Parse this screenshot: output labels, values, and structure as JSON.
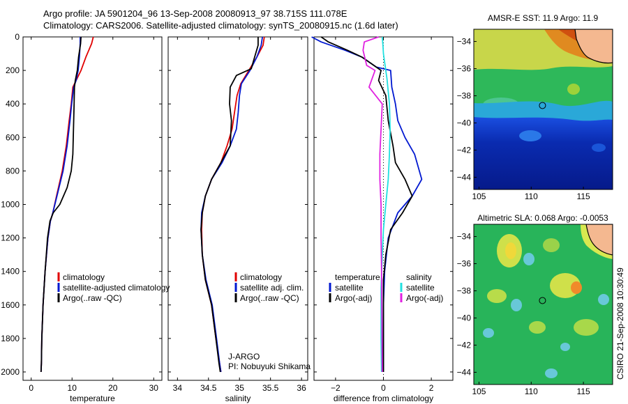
{
  "header": {
    "line1": "Argo profile: JA 5901204_96 13-Sep-2008 20080913_97 38.715S 111.078E",
    "line2": "Climatology: CARS2006. Satellite-adjusted climatology: synTS_20080915.nc (1.6d later)"
  },
  "colors": {
    "red": "#e00000",
    "blue": "#0018d0",
    "black": "#000000",
    "cyan": "#20e0e0",
    "magenta": "#e020e0"
  },
  "chart_data": [
    {
      "type": "line",
      "xlabel": "temperature",
      "ylabel": "",
      "xlim": [
        -2,
        32
      ],
      "ylim": [
        2050,
        0
      ],
      "xticks": [
        0,
        10,
        20,
        30
      ],
      "yticks": [
        0,
        200,
        400,
        600,
        800,
        1000,
        1200,
        1400,
        1600,
        1800,
        2000
      ],
      "legend": [
        "climatology",
        "satellite-adjusted climatology",
        "Argo(..raw -QC)"
      ],
      "series": [
        {
          "name": "climatology",
          "color": "red",
          "x": [
            15.2,
            14.8,
            13.4,
            12.2,
            11.0,
            10.2,
            9.8,
            9.3,
            8.6,
            7.6,
            6.2,
            5.3,
            4.7,
            4.1,
            3.4,
            2.9,
            2.6,
            2.5,
            2.4
          ],
          "y": [
            0,
            40,
            120,
            200,
            260,
            300,
            400,
            500,
            650,
            800,
            950,
            1050,
            1100,
            1200,
            1400,
            1600,
            1800,
            1950,
            2000
          ]
        },
        {
          "name": "satellite-adjusted climatology",
          "color": "blue",
          "x": [
            12.0,
            12.0,
            11.8,
            11.5,
            11.0,
            10.4,
            9.9,
            9.5,
            8.8,
            7.8,
            6.3,
            5.3,
            4.7,
            4.1,
            3.4,
            2.9,
            2.6,
            2.5,
            2.4
          ],
          "y": [
            0,
            40,
            120,
            200,
            260,
            300,
            400,
            500,
            650,
            800,
            950,
            1050,
            1100,
            1200,
            1400,
            1600,
            1800,
            1950,
            2000
          ]
        },
        {
          "name": "Argo(..raw -QC)",
          "color": "black",
          "x": [
            12.2,
            12.1,
            11.6,
            11.3,
            10.8,
            10.6,
            10.5,
            10.4,
            10.3,
            10.2,
            9.8,
            8.8,
            7.0,
            5.4,
            4.6,
            4.0,
            3.4,
            2.9,
            2.6,
            2.5,
            2.4
          ],
          "y": [
            0,
            40,
            120,
            200,
            260,
            300,
            400,
            500,
            600,
            700,
            800,
            900,
            1000,
            1050,
            1100,
            1200,
            1400,
            1600,
            1800,
            1950,
            2000
          ]
        }
      ]
    },
    {
      "type": "line",
      "xlabel": "salinity",
      "ylabel": "",
      "xlim": [
        33.85,
        36.1
      ],
      "ylim": [
        2050,
        0
      ],
      "xticks": [
        34,
        34.5,
        35,
        35.5,
        36
      ],
      "xticklabels": [
        "34",
        "34.5",
        "35",
        "35.5",
        "36"
      ],
      "legend": [
        "climatology",
        "satellite adj. clim.",
        "Argo(..raw -QC)"
      ],
      "annotation": [
        "J-ARGO",
        "PI: Nobuyuki Shikama"
      ],
      "series": [
        {
          "name": "climatology",
          "color": "red",
          "x": [
            35.4,
            35.38,
            35.28,
            35.15,
            35.02,
            34.96,
            34.92,
            34.88,
            34.8,
            34.7,
            34.55,
            34.45,
            34.4,
            34.39,
            34.4,
            34.45,
            34.55,
            34.62,
            34.68,
            34.7
          ],
          "y": [
            0,
            50,
            120,
            200,
            280,
            350,
            450,
            550,
            650,
            750,
            850,
            950,
            1050,
            1150,
            1300,
            1450,
            1600,
            1800,
            1950,
            2000
          ]
        },
        {
          "name": "satellite adj. clim.",
          "color": "blue",
          "x": [
            35.37,
            35.35,
            35.28,
            35.17,
            35.03,
            35.0,
            34.98,
            34.95,
            34.85,
            34.72,
            34.55,
            34.45,
            34.39,
            34.38,
            34.4,
            34.46,
            34.56,
            34.63,
            34.68,
            34.7
          ],
          "y": [
            0,
            50,
            120,
            200,
            280,
            350,
            450,
            550,
            650,
            750,
            850,
            950,
            1050,
            1150,
            1300,
            1450,
            1600,
            1800,
            1950,
            2000
          ]
        },
        {
          "name": "Argo(..raw -QC)",
          "color": "black",
          "x": [
            35.3,
            35.3,
            35.22,
            35.19,
            34.95,
            34.85,
            34.84,
            34.87,
            34.85,
            34.7,
            34.55,
            34.45,
            34.4,
            34.38,
            34.4,
            34.45,
            34.55,
            34.62,
            34.67,
            34.69
          ],
          "y": [
            0,
            50,
            150,
            190,
            230,
            300,
            400,
            500,
            650,
            750,
            850,
            950,
            1050,
            1150,
            1300,
            1450,
            1600,
            1800,
            1950,
            2000
          ]
        }
      ]
    },
    {
      "type": "line",
      "xlabel": "difference from climatology",
      "ylabel": "",
      "xlim": [
        -2.9,
        2.9
      ],
      "ylim": [
        2050,
        0
      ],
      "xticks": [
        -2,
        0,
        2
      ],
      "legend": [
        "temperature",
        "satellite",
        "Argo(-adj)",
        "salinity",
        "satellite",
        "Argo(-adj)"
      ],
      "series": [
        {
          "name": "temperature satellite",
          "color": "blue",
          "x": [
            -3.0,
            -2.6,
            -1.6,
            -0.9,
            -0.3,
            0.3,
            0.35,
            0.5,
            0.6,
            0.9,
            1.3,
            1.6,
            1.2,
            0.6,
            0.2,
            0.05,
            0.0,
            0.0,
            0.0
          ],
          "y": [
            0,
            30,
            80,
            120,
            180,
            200,
            300,
            400,
            500,
            600,
            700,
            850,
            950,
            1050,
            1200,
            1400,
            1600,
            1800,
            2000
          ]
        },
        {
          "name": "temperature Argo(-adj)",
          "color": "black",
          "x": [
            -2.6,
            -2.3,
            -1.5,
            -0.9,
            -0.4,
            -0.1,
            -0.2,
            0.1,
            0.2,
            0.4,
            0.5,
            0.9,
            1.2,
            0.8,
            0.3,
            0.1,
            0.0,
            0.0,
            0.0,
            0.0
          ],
          "y": [
            0,
            30,
            80,
            120,
            170,
            200,
            260,
            350,
            500,
            650,
            750,
            850,
            950,
            1050,
            1150,
            1300,
            1450,
            1600,
            1800,
            2000
          ]
        },
        {
          "name": "salinity satellite",
          "color": "cyan",
          "x": [
            -0.05,
            -0.02,
            0.0,
            0.05,
            0.15,
            0.25,
            0.28,
            0.25,
            0.2,
            0.1,
            0.0,
            -0.05,
            -0.1,
            -0.1,
            -0.08
          ],
          "y": [
            0,
            50,
            100,
            150,
            250,
            400,
            550,
            700,
            850,
            1000,
            1150,
            1300,
            1500,
            1800,
            2000
          ]
        },
        {
          "name": "salinity Argo(-adj)",
          "color": "magenta",
          "x": [
            -0.2,
            -0.8,
            -0.85,
            -0.7,
            -0.35,
            -0.6,
            -0.05,
            -0.1,
            -0.15,
            -0.15,
            -0.1,
            -0.1,
            -0.08,
            -0.06,
            -0.05
          ],
          "y": [
            0,
            30,
            80,
            170,
            200,
            300,
            400,
            550,
            700,
            850,
            1000,
            1200,
            1400,
            1700,
            2000
          ]
        }
      ]
    },
    {
      "type": "heatmap",
      "title": "AMSR-E SST: 11.9 Argo: 11.9",
      "xlim": [
        104.5,
        117.8
      ],
      "ylim": [
        -44.9,
        -33.1
      ],
      "xticks": [
        105,
        110,
        115
      ],
      "yticks": [
        -34,
        -36,
        -38,
        -40,
        -42,
        -44
      ],
      "marker": {
        "lon": 111.078,
        "lat": -38.715
      }
    },
    {
      "type": "heatmap",
      "title": "Altimetric SLA: 0.068 Argo: -0.0053",
      "xlim": [
        104.5,
        117.8
      ],
      "ylim": [
        -44.9,
        -33.1
      ],
      "xticks": [
        105,
        110,
        115
      ],
      "yticks": [
        -34,
        -36,
        -38,
        -40,
        -42,
        -44
      ],
      "marker": {
        "lon": 111.078,
        "lat": -38.715
      }
    }
  ],
  "side_label": "CSIRO 21-Sep-2008 10:30:49"
}
